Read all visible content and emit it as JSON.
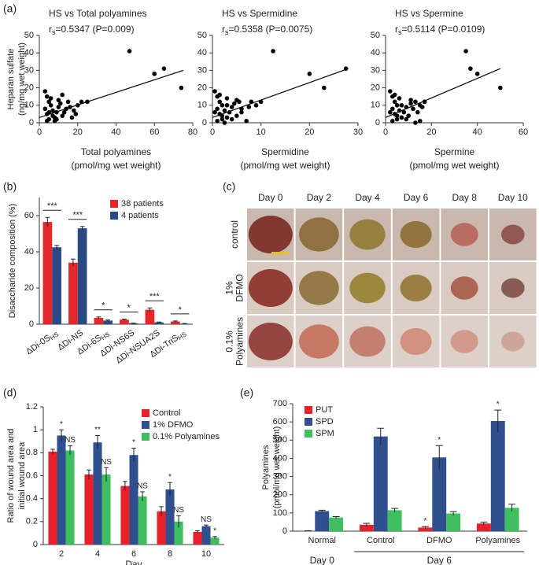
{
  "chart_data": [
    {
      "type": "scatter",
      "panel": "(a)",
      "title": "HS vs Total polyamines",
      "stat": {
        "symbol": "r",
        "subscript": "s",
        "text": "=0.5347 (P=0.009)"
      },
      "x": [
        3,
        4,
        5,
        3,
        6,
        4,
        7,
        8,
        5,
        9,
        10,
        6,
        12,
        11,
        14,
        15,
        13,
        8,
        16,
        18,
        20,
        22,
        17,
        10,
        4,
        5,
        7,
        9,
        12,
        19,
        25,
        47,
        60,
        65,
        74
      ],
      "values": [
        18,
        15,
        12,
        8,
        10,
        5,
        7,
        3,
        2,
        6,
        9,
        14,
        4,
        11,
        8,
        12,
        6,
        1,
        9,
        7,
        10,
        12,
        3,
        13,
        1,
        6,
        4,
        2,
        16,
        5,
        12,
        41,
        28,
        31,
        20
      ],
      "fit": {
        "x": [
          0,
          75
        ],
        "y": [
          3,
          30
        ]
      },
      "color": "#000000",
      "xlim": [
        0,
        80
      ],
      "xticks": [
        0,
        20,
        40,
        60,
        80
      ],
      "ylim": [
        0,
        50
      ],
      "yticks": [
        0,
        10,
        20,
        30,
        40,
        50
      ],
      "xlabel": [
        "Total polyamines",
        "(pmol/mg wet weight)"
      ],
      "ylabel": [
        "Heparan sulfate",
        "(ng/mg wet weight)"
      ]
    },
    {
      "type": "scatter",
      "title": "HS vs Spermidine",
      "stat": {
        "symbol": "r",
        "subscript": "s",
        "text": "=0.5358 (P=0.0075)"
      },
      "x": [
        0.5,
        1,
        1.5,
        1,
        2,
        1.5,
        2.5,
        3,
        2,
        3.5,
        4,
        3,
        5,
        4.5,
        6,
        5.5,
        6,
        7,
        7.5,
        8,
        1,
        2,
        3,
        4,
        5,
        0.5,
        1.5,
        2.5,
        9,
        10,
        12.5,
        20,
        23,
        27.5
      ],
      "values": [
        18,
        15,
        12,
        8,
        10,
        5,
        7,
        3,
        2,
        6,
        9,
        14,
        4,
        11,
        8,
        12,
        6,
        1,
        9,
        12,
        1,
        4,
        10,
        2,
        13,
        6,
        16,
        0,
        10,
        12,
        41,
        28,
        20,
        31
      ],
      "fit": {
        "x": [
          0,
          28
        ],
        "y": [
          3,
          31
        ]
      },
      "color": "#000000",
      "xlim": [
        0,
        30
      ],
      "xticks": [
        0,
        10,
        20,
        30
      ],
      "ylim": [
        0,
        50
      ],
      "yticks": [
        0,
        10,
        20,
        30,
        40,
        50
      ],
      "xlabel": [
        "Spermidine",
        "(pmol/mg wet weight)"
      ]
    },
    {
      "type": "scatter",
      "title": "HS vs Spermine",
      "stat": {
        "symbol": "r",
        "subscript": "s",
        "text": "=0.5114 (P=0.0109)"
      },
      "x": [
        2,
        3,
        4,
        3,
        5,
        4,
        6,
        7,
        5,
        8,
        9,
        6,
        10,
        11,
        12,
        13,
        14,
        15,
        16,
        17,
        3,
        5,
        7,
        9,
        11,
        2,
        4,
        13,
        15,
        17,
        35,
        37,
        40,
        50
      ],
      "values": [
        18,
        15,
        12,
        8,
        10,
        5,
        7,
        3,
        2,
        6,
        9,
        14,
        4,
        11,
        8,
        12,
        6,
        1,
        9,
        12,
        1,
        4,
        10,
        2,
        13,
        6,
        16,
        0,
        10,
        12,
        41,
        31,
        28,
        20
      ],
      "fit": {
        "x": [
          0,
          50
        ],
        "y": [
          3,
          31
        ]
      },
      "color": "#000000",
      "xlim": [
        0,
        60
      ],
      "xticks": [
        0,
        20,
        40,
        60
      ],
      "ylim": [
        0,
        50
      ],
      "yticks": [
        0,
        10,
        20,
        30,
        40,
        50
      ],
      "xlabel": [
        "Spermine",
        "(pmol/mg wet weight)"
      ]
    },
    {
      "type": "bar",
      "panel": "(b)",
      "categories": [
        "ΔDi-0S",
        "ΔDi-NS",
        "ΔDi-6S",
        "ΔDi-NS6S",
        "ΔDi-NSUA2S",
        "ΔDi-TriS"
      ],
      "category_subscripts": [
        "HS",
        null,
        "HS",
        null,
        null,
        "HS"
      ],
      "series": [
        {
          "name": "38 patients",
          "color": "#e5262b",
          "values": [
            56.5,
            34,
            3.5,
            2.5,
            8,
            1.5
          ],
          "errors": [
            2.5,
            2,
            0.5,
            0.3,
            1,
            0.3
          ]
        },
        {
          "name": "4 patients",
          "color": "#2b4a85",
          "values": [
            42.5,
            53,
            2,
            0.5,
            1,
            0.3
          ],
          "errors": [
            1,
            1,
            0.3,
            0.1,
            0.2,
            0.1
          ]
        }
      ],
      "annotations": [
        "***",
        "***",
        "*",
        "*",
        "***",
        "*"
      ],
      "ylim": [
        0,
        70
      ],
      "yticks": [
        0,
        20,
        40,
        60
      ],
      "ylabel": [
        "Disaccharide composition (%)"
      ],
      "legend": "upper right"
    },
    {
      "type": "bar",
      "panel": "(d)",
      "categories": [
        "2",
        "4",
        "6",
        "8",
        "10"
      ],
      "series": [
        {
          "name": "Control",
          "color": "#e8202a",
          "values": [
            0.81,
            0.61,
            0.51,
            0.29,
            0.11
          ],
          "errors": [
            0.02,
            0.04,
            0.04,
            0.04,
            0.01
          ]
        },
        {
          "name": "1% DFMO",
          "color": "#2f4f8f",
          "values": [
            0.95,
            0.89,
            0.78,
            0.48,
            0.16
          ],
          "errors": [
            0.05,
            0.06,
            0.06,
            0.06,
            0.01
          ],
          "annotations": [
            "*",
            "**",
            "*",
            "*",
            "NS"
          ]
        },
        {
          "name": "0.1% Polyamines",
          "color": "#3fbf5f",
          "values": [
            0.82,
            0.61,
            0.42,
            0.2,
            0.06
          ],
          "errors": [
            0.04,
            0.06,
            0.04,
            0.05,
            0.01
          ],
          "annotations": [
            "NS",
            "NS",
            "NS",
            "NS",
            "*"
          ]
        }
      ],
      "ylim": [
        0,
        1.2
      ],
      "yticks": [
        0,
        0.2,
        0.4,
        0.6,
        0.8,
        1,
        1.2
      ],
      "xlabel": [
        "Day"
      ],
      "ylabel": [
        "Ratio of wound area and",
        "initial wound area"
      ],
      "legend": "upper right"
    },
    {
      "type": "bar",
      "panel": "(e)",
      "categories": [
        "Normal",
        "Control",
        "DFMO",
        "Polyamines"
      ],
      "series": [
        {
          "name": "PUT",
          "color": "#e8202a",
          "values": [
            2,
            35,
            20,
            42
          ],
          "errors": [
            0,
            8,
            5,
            8
          ],
          "annotations": [
            null,
            null,
            "*",
            null
          ]
        },
        {
          "name": "SPD",
          "color": "#2f4f8f",
          "values": [
            110,
            520,
            405,
            605
          ],
          "errors": [
            5,
            45,
            65,
            60
          ],
          "annotations": [
            null,
            null,
            "*",
            "*"
          ]
        },
        {
          "name": "SPM",
          "color": "#3fbf5f",
          "values": [
            75,
            115,
            97,
            128
          ],
          "errors": [
            5,
            10,
            10,
            20
          ]
        }
      ],
      "group_labels": [
        "Day 0",
        "Day 6"
      ],
      "ylim": [
        0,
        700
      ],
      "yticks": [
        0,
        100,
        200,
        300,
        400,
        500,
        600,
        700
      ],
      "ylabel": [
        "Polyamines",
        "(pmol/mg wet weight)"
      ],
      "legend": "upper left"
    }
  ],
  "photo_panel": {
    "panel": "(c)",
    "columns": [
      "Day 0",
      "Day 2",
      "Day 4",
      "Day 6",
      "Day 8",
      "Day 10"
    ],
    "rows": [
      [
        "control"
      ],
      [
        "1%",
        "DFMO"
      ],
      [
        "0.1%",
        "Polyamines"
      ]
    ]
  }
}
